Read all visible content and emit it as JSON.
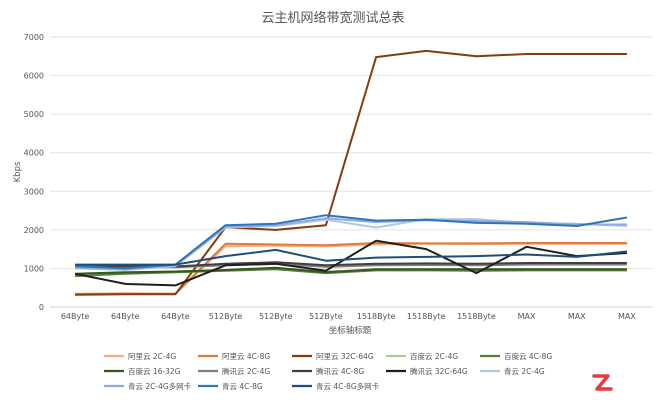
{
  "chart_data": {
    "type": "line",
    "title": "云主机网络带宽测试总表",
    "xlabel": "坐标轴标题",
    "ylabel": "Kbps",
    "ylim": [
      0,
      7000
    ],
    "yticks": [
      0,
      1000,
      2000,
      3000,
      4000,
      5000,
      6000,
      7000
    ],
    "grid": true,
    "legend_position": "bottom",
    "categories": [
      "64Byte",
      "64Byte",
      "64Byte",
      "512Byte",
      "512Byte",
      "512Byte",
      "1518Byte",
      "1518Byte",
      "1518Byte",
      "MAX",
      "MAX",
      "MAX"
    ],
    "series": [
      {
        "name": "阿里云 2C-4G",
        "color": "#f4b183",
        "values": [
          330,
          340,
          350,
          1580,
          1590,
          1570,
          1620,
          1640,
          1630,
          1640,
          1640,
          1640
        ]
      },
      {
        "name": "阿里云 4C-8G",
        "color": "#e07b39",
        "values": [
          340,
          350,
          340,
          1640,
          1620,
          1600,
          1660,
          1650,
          1650,
          1660,
          1660,
          1660
        ]
      },
      {
        "name": "阿里云 32C-64G",
        "color": "#843c0c",
        "values": [
          320,
          330,
          330,
          2070,
          2000,
          2120,
          6480,
          6640,
          6500,
          6560,
          6560,
          6560
        ]
      },
      {
        "name": "百度云 2C-4G",
        "color": "#a9d18e",
        "values": [
          820,
          880,
          920,
          960,
          1000,
          920,
          960,
          960,
          960,
          960,
          960,
          960
        ]
      },
      {
        "name": "百度云 4C-8G",
        "color": "#548235",
        "values": [
          800,
          860,
          900,
          940,
          980,
          880,
          950,
          950,
          940,
          950,
          950,
          950
        ]
      },
      {
        "name": "百度云 16-32G",
        "color": "#375623",
        "values": [
          860,
          900,
          920,
          960,
          1020,
          900,
          980,
          980,
          980,
          980,
          980,
          980
        ]
      },
      {
        "name": "腾讯云 2C-4G",
        "color": "#7f7f7f",
        "values": [
          1000,
          1020,
          1030,
          1080,
          1120,
          1040,
          1080,
          1090,
          1080,
          1100,
          1100,
          1100
        ]
      },
      {
        "name": "腾讯云 4C-8G",
        "color": "#404040",
        "values": [
          1040,
          1060,
          1050,
          1120,
          1160,
          1080,
          1120,
          1130,
          1120,
          1140,
          1140,
          1140
        ]
      },
      {
        "name": "腾讯云 32C-64G",
        "color": "#1f1f1f",
        "values": [
          860,
          600,
          560,
          1080,
          1120,
          940,
          1720,
          1500,
          880,
          1560,
          1320,
          1400
        ]
      },
      {
        "name": "青云 2C-4G",
        "color": "#b4c7e7",
        "values": [
          1000,
          960,
          1060,
          2060,
          2100,
          2260,
          2060,
          2280,
          2280,
          2180,
          2160,
          2100
        ]
      },
      {
        "name": "青云 2C-4G多网卡",
        "color": "#8faadc",
        "values": [
          1020,
          980,
          1080,
          2080,
          2120,
          2300,
          2200,
          2250,
          2230,
          2200,
          2140,
          2140
        ]
      },
      {
        "name": "青云 4C-8G",
        "color": "#2e75b6",
        "values": [
          1060,
          1000,
          1100,
          2120,
          2160,
          2380,
          2240,
          2260,
          2180,
          2160,
          2100,
          2320
        ]
      },
      {
        "name": "青云 4C-8G多网卡",
        "color": "#1f4e79",
        "values": [
          1100,
          1100,
          1100,
          1320,
          1480,
          1200,
          1280,
          1300,
          1320,
          1360,
          1300,
          1440
        ]
      }
    ]
  }
}
